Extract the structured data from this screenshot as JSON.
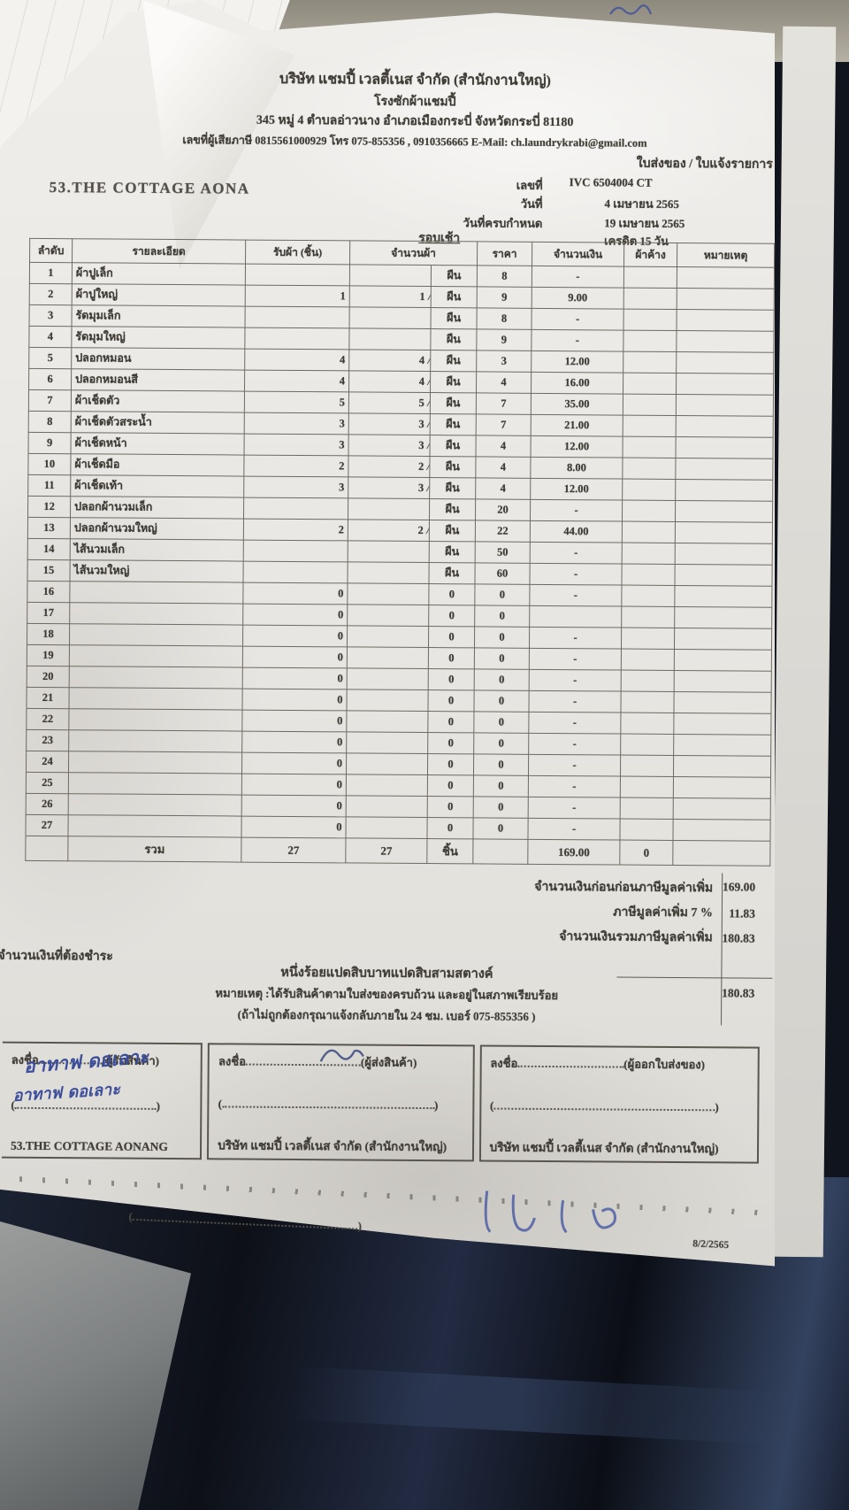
{
  "header": {
    "company_line1": "บริษัท แชมปี้ เวลตี้เนส จำกัด (สำนักงานใหญ่)",
    "company_line2": "โรงซักผ้าแชมปี้",
    "company_line3": "345 หมู่ 4 ตำบลอ่าวนาง อำเภอเมืองกระบี่ จังหวัดกระบี่ 81180",
    "company_line4": "เลขที่ผู้เสียภาษี 0815561000929 โทร 075-855356 , 0910356665 E-Mail: ch.laundrykrabi@gmail.com"
  },
  "doc": {
    "type_label": "ใบส่งของ / ใบแจ้งรายการ",
    "no_label": "เลขที่",
    "no_value": "IVC 6504004 CT",
    "date_label": "วันที่",
    "date_value": "4 เมษายน 2565",
    "due_label": "วันที่ครบกำหนด",
    "due_value": "19 เมษายน 2565",
    "credit": "เครดิต 15 วัน",
    "customer": "53.THE COTTAGE AONA",
    "round": "รอบเช้า"
  },
  "table": {
    "headers": [
      "ลำดับ",
      "รายละเอียด",
      "รับผ้า (ชิ้น)",
      "จำนวนผ้า",
      "ราคา",
      "จำนวนเงิน",
      "ผ้าค้าง",
      "หมายเหตุ"
    ],
    "rows": [
      {
        "no": "1",
        "desc": "ผ้าปูเล็ก",
        "received": "",
        "qty": "",
        "check": false,
        "unit": "ผืน",
        "price": "8",
        "amount": "-"
      },
      {
        "no": "2",
        "desc": "ผ้าปูใหญ่",
        "received": "1",
        "qty": "1",
        "check": true,
        "unit": "ผืน",
        "price": "9",
        "amount": "9.00"
      },
      {
        "no": "3",
        "desc": "รัดมุมเล็ก",
        "received": "",
        "qty": "",
        "check": false,
        "unit": "ผืน",
        "price": "8",
        "amount": "-"
      },
      {
        "no": "4",
        "desc": "รัดมุมใหญ่",
        "received": "",
        "qty": "",
        "check": false,
        "unit": "ผืน",
        "price": "9",
        "amount": "-"
      },
      {
        "no": "5",
        "desc": "ปลอกหมอน",
        "received": "4",
        "qty": "4",
        "check": true,
        "unit": "ผืน",
        "price": "3",
        "amount": "12.00"
      },
      {
        "no": "6",
        "desc": "ปลอกหมอนสี",
        "received": "4",
        "qty": "4",
        "check": true,
        "unit": "ผืน",
        "price": "4",
        "amount": "16.00"
      },
      {
        "no": "7",
        "desc": "ผ้าเช็ดตัว",
        "received": "5",
        "qty": "5",
        "check": true,
        "unit": "ผืน",
        "price": "7",
        "amount": "35.00"
      },
      {
        "no": "8",
        "desc": "ผ้าเช็ดตัวสระน้ำ",
        "received": "3",
        "qty": "3",
        "check": true,
        "unit": "ผืน",
        "price": "7",
        "amount": "21.00"
      },
      {
        "no": "9",
        "desc": "ผ้าเช็ดหน้า",
        "received": "3",
        "qty": "3",
        "check": true,
        "unit": "ผืน",
        "price": "4",
        "amount": "12.00"
      },
      {
        "no": "10",
        "desc": "ผ้าเช็ดมือ",
        "received": "2",
        "qty": "2",
        "check": true,
        "unit": "ผืน",
        "price": "4",
        "amount": "8.00"
      },
      {
        "no": "11",
        "desc": "ผ้าเช็ดเท้า",
        "received": "3",
        "qty": "3",
        "check": true,
        "unit": "ผืน",
        "price": "4",
        "amount": "12.00"
      },
      {
        "no": "12",
        "desc": "ปลอกผ้านวมเล็ก",
        "received": "",
        "qty": "",
        "check": false,
        "unit": "ผืน",
        "price": "20",
        "amount": "-"
      },
      {
        "no": "13",
        "desc": "ปลอกผ้านวมใหญ่",
        "received": "2",
        "qty": "2",
        "check": true,
        "unit": "ผืน",
        "price": "22",
        "amount": "44.00"
      },
      {
        "no": "14",
        "desc": "ไส้นวมเล็ก",
        "received": "",
        "qty": "",
        "check": false,
        "unit": "ผืน",
        "price": "50",
        "amount": "-"
      },
      {
        "no": "15",
        "desc": "ไส้นวมใหญ่",
        "received": "",
        "qty": "",
        "check": false,
        "unit": "ผืน",
        "price": "60",
        "amount": "-"
      },
      {
        "no": "16",
        "desc": "",
        "received": "0",
        "qty": "",
        "check": false,
        "unit": "0",
        "price": "0",
        "amount": "-"
      },
      {
        "no": "17",
        "desc": "",
        "received": "0",
        "qty": "",
        "check": false,
        "unit": "0",
        "price": "0",
        "amount": ""
      },
      {
        "no": "18",
        "desc": "",
        "received": "0",
        "qty": "",
        "check": false,
        "unit": "0",
        "price": "0",
        "amount": "-"
      },
      {
        "no": "19",
        "desc": "",
        "received": "0",
        "qty": "",
        "check": false,
        "unit": "0",
        "price": "0",
        "amount": "-"
      },
      {
        "no": "20",
        "desc": "",
        "received": "0",
        "qty": "",
        "check": false,
        "unit": "0",
        "price": "0",
        "amount": "-"
      },
      {
        "no": "21",
        "desc": "",
        "received": "0",
        "qty": "",
        "check": false,
        "unit": "0",
        "price": "0",
        "amount": "-"
      },
      {
        "no": "22",
        "desc": "",
        "received": "0",
        "qty": "",
        "check": false,
        "unit": "0",
        "price": "0",
        "amount": "-"
      },
      {
        "no": "23",
        "desc": "",
        "received": "0",
        "qty": "",
        "check": false,
        "unit": "0",
        "price": "0",
        "amount": "-"
      },
      {
        "no": "24",
        "desc": "",
        "received": "0",
        "qty": "",
        "check": false,
        "unit": "0",
        "price": "0",
        "amount": "-"
      },
      {
        "no": "25",
        "desc": "",
        "received": "0",
        "qty": "",
        "check": false,
        "unit": "0",
        "price": "0",
        "amount": "-"
      },
      {
        "no": "26",
        "desc": "",
        "received": "0",
        "qty": "",
        "check": false,
        "unit": "0",
        "price": "0",
        "amount": "-"
      },
      {
        "no": "27",
        "desc": "",
        "received": "0",
        "qty": "",
        "check": false,
        "unit": "0",
        "price": "0",
        "amount": "-"
      }
    ],
    "total": {
      "label": "รวม",
      "received": "27",
      "qty": "27",
      "unit": "ชิ้น",
      "price": "",
      "amount": "169.00",
      "balance": "0"
    }
  },
  "summary": {
    "before_vat_label": "จำนวนเงินก่อนก่อนภาษีมูลค่าเพิ่ม",
    "before_vat_value": "169.00",
    "vat_label": "ภาษีมูลค่าเพิ่ม 7 %",
    "vat_value": "11.83",
    "total_label": "จำนวนเงินรวมภาษีมูลค่าเพิ่ม",
    "total_value": "180.83",
    "amount_due_label": "จำนวนเงินที่ต้องชำระ",
    "amount_words": "หนึ่งร้อยแปดสิบบาทแปดสิบสามสตางค์",
    "note1": "หมายเหตุ :ได้รับสินค้าตามใบส่งของครบถ้วน และอยู่ในสภาพเรียบร้อย",
    "note2": "(ถ้าไม่ถูกต้องกรุณาแจ้งกลับภายใน 24 ชม. เบอร์ 075-855356 )",
    "amount_due_value": "180.83"
  },
  "signatures": {
    "sign_label": "ลงชื่อ",
    "receiver_role": "(ผู้รับสินค้า)",
    "receiver_org": "53.THE COTTAGE AONANG",
    "receiver_handwriting": "อาทาฟ ดอเลาะ",
    "sender_role": "(ผู้ส่งสินค้า)",
    "sender_org": "บริษัท แชมปี้ เวลตี้เนส จำกัด (สำนักงานใหญ่)",
    "issuer_role": "(ผู้ออกใบส่งของ)",
    "issuer_org": "บริษัท แชมปี้ เวลตี้เนส จำกัด (สำนักงานใหญ่)"
  },
  "footer": {
    "print_date": "8/2/2565"
  }
}
